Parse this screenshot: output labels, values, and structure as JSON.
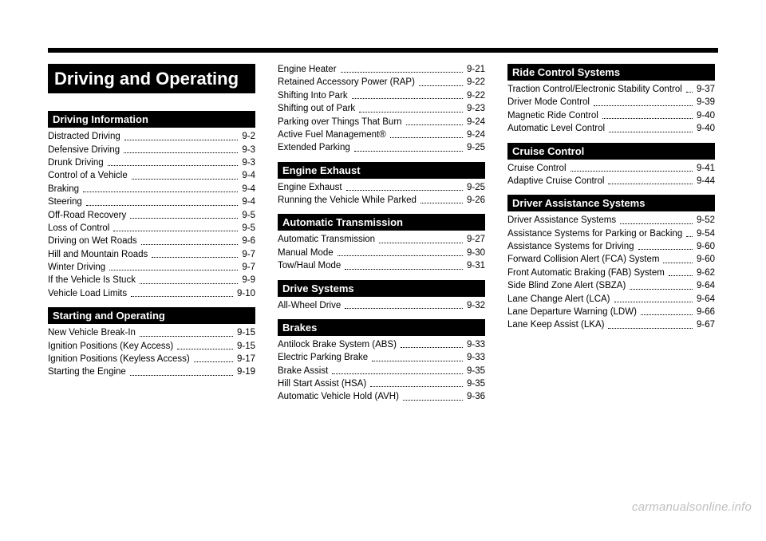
{
  "chapterTitle": "Driving and Operating",
  "watermark": "carmanualsonline.info",
  "columns": [
    {
      "sections": [
        {
          "heading": "Driving Information",
          "items": [
            {
              "label": "Distracted Driving",
              "page": "9-2"
            },
            {
              "label": "Defensive Driving",
              "page": "9-3"
            },
            {
              "label": "Drunk Driving",
              "page": "9-3"
            },
            {
              "label": "Control of a Vehicle",
              "page": "9-4"
            },
            {
              "label": "Braking",
              "page": "9-4"
            },
            {
              "label": "Steering",
              "page": "9-4"
            },
            {
              "label": "Off-Road Recovery",
              "page": "9-5"
            },
            {
              "label": "Loss of Control",
              "page": "9-5"
            },
            {
              "label": "Driving on Wet Roads",
              "page": "9-6"
            },
            {
              "label": "Hill and Mountain Roads",
              "page": "9-7"
            },
            {
              "label": "Winter Driving",
              "page": "9-7"
            },
            {
              "label": "If the Vehicle Is Stuck",
              "page": "9-9"
            },
            {
              "label": "Vehicle Load Limits",
              "page": "9-10"
            }
          ]
        },
        {
          "heading": "Starting and Operating",
          "items": [
            {
              "label": "New Vehicle Break-In",
              "page": "9-15"
            },
            {
              "label": "Ignition Positions (Key Access)",
              "page": "9-15"
            },
            {
              "label": "Ignition Positions (Keyless Access)",
              "page": "9-17"
            },
            {
              "label": "Starting the Engine",
              "page": "9-19"
            }
          ]
        }
      ]
    },
    {
      "sections": [
        {
          "heading": null,
          "items": [
            {
              "label": "Engine Heater",
              "page": "9-21"
            },
            {
              "label": "Retained Accessory Power (RAP)",
              "page": "9-22"
            },
            {
              "label": "Shifting Into Park",
              "page": "9-22"
            },
            {
              "label": "Shifting out of Park",
              "page": "9-23"
            },
            {
              "label": "Parking over Things That Burn",
              "page": "9-24"
            },
            {
              "label": "Active Fuel Management®",
              "page": "9-24"
            },
            {
              "label": "Extended Parking",
              "page": "9-25"
            }
          ]
        },
        {
          "heading": "Engine Exhaust",
          "items": [
            {
              "label": "Engine Exhaust",
              "page": "9-25"
            },
            {
              "label": "Running the Vehicle While Parked",
              "page": "9-26"
            }
          ]
        },
        {
          "heading": "Automatic Transmission",
          "items": [
            {
              "label": "Automatic Transmission",
              "page": "9-27"
            },
            {
              "label": "Manual Mode",
              "page": "9-30"
            },
            {
              "label": "Tow/Haul Mode",
              "page": "9-31"
            }
          ]
        },
        {
          "heading": "Drive Systems",
          "items": [
            {
              "label": "All-Wheel Drive",
              "page": "9-32"
            }
          ]
        },
        {
          "heading": "Brakes",
          "items": [
            {
              "label": "Antilock Brake System (ABS)",
              "page": "9-33"
            },
            {
              "label": "Electric Parking Brake",
              "page": "9-33"
            },
            {
              "label": "Brake Assist",
              "page": "9-35"
            },
            {
              "label": "Hill Start Assist (HSA)",
              "page": "9-35"
            },
            {
              "label": "Automatic Vehicle Hold (AVH)",
              "page": "9-36"
            }
          ]
        }
      ]
    },
    {
      "sections": [
        {
          "heading": "Ride Control Systems",
          "items": [
            {
              "label": "Traction Control/Electronic Stability Control",
              "page": "9-37"
            },
            {
              "label": "Driver Mode Control",
              "page": "9-39"
            },
            {
              "label": "Magnetic Ride Control",
              "page": "9-40"
            },
            {
              "label": "Automatic Level Control",
              "page": "9-40"
            }
          ]
        },
        {
          "heading": "Cruise Control",
          "items": [
            {
              "label": "Cruise Control",
              "page": "9-41"
            },
            {
              "label": "Adaptive Cruise Control",
              "page": "9-44"
            }
          ]
        },
        {
          "heading": "Driver Assistance Systems",
          "items": [
            {
              "label": "Driver Assistance Systems",
              "page": "9-52"
            },
            {
              "label": "Assistance Systems for Parking or Backing",
              "page": "9-54"
            },
            {
              "label": "Assistance Systems for Driving",
              "page": "9-60"
            },
            {
              "label": "Forward Collision Alert (FCA) System",
              "page": "9-60"
            },
            {
              "label": "Front Automatic Braking (FAB) System",
              "page": "9-62"
            },
            {
              "label": "Side Blind Zone Alert (SBZA)",
              "page": "9-64"
            },
            {
              "label": "Lane Change Alert (LCA)",
              "page": "9-64"
            },
            {
              "label": "Lane Departure Warning (LDW)",
              "page": "9-66"
            },
            {
              "label": "Lane Keep Assist (LKA)",
              "page": "9-67"
            }
          ]
        }
      ]
    }
  ]
}
